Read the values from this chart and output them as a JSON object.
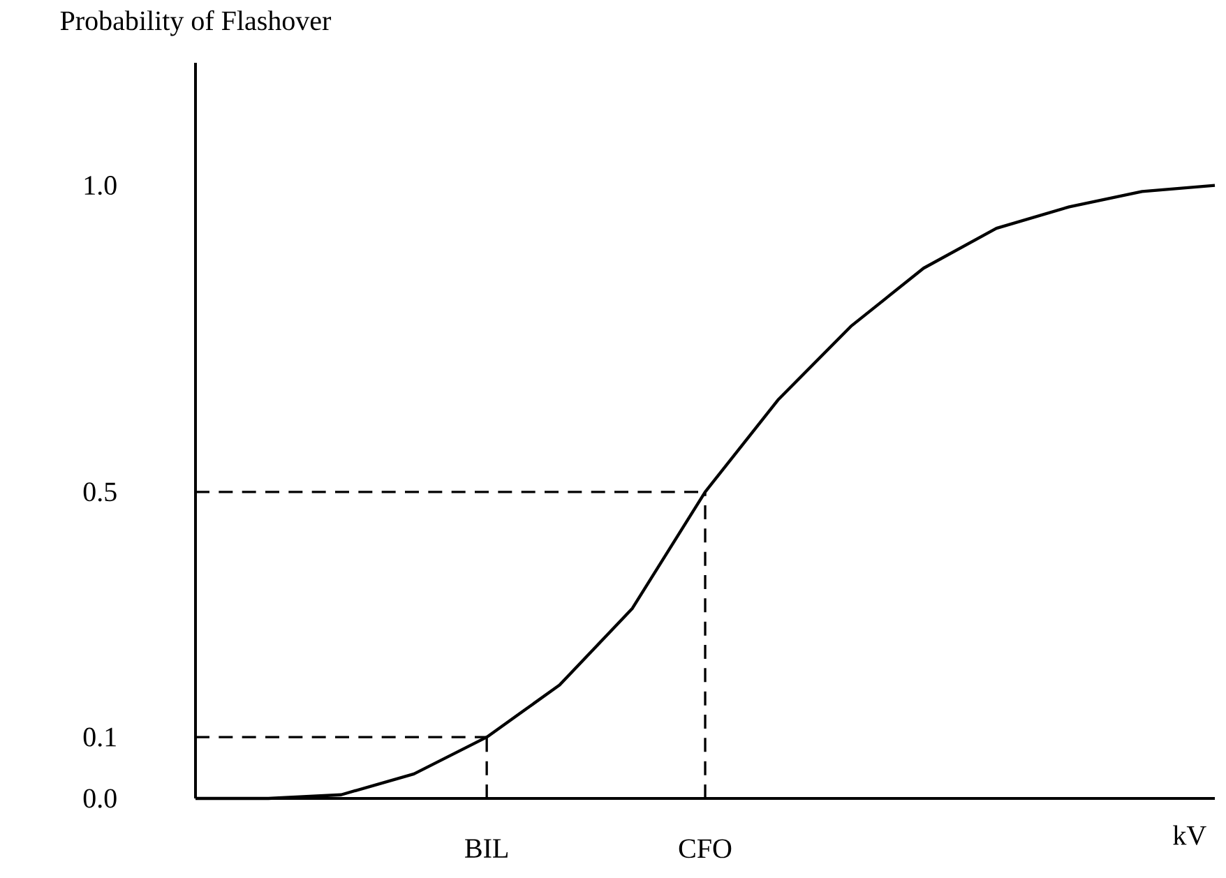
{
  "chart_data": {
    "type": "line",
    "ylabel": "Probability of Flashover",
    "xlabel": "kV",
    "ylim": [
      0,
      1.2
    ],
    "categories": [
      null,
      null,
      null,
      null,
      "BIL",
      null,
      null,
      "CFO",
      null,
      null,
      null,
      null,
      null,
      null,
      null
    ],
    "yticks": [
      {
        "value": 0,
        "label": "0.0"
      },
      {
        "value": 0.1,
        "label": "0.1"
      },
      {
        "value": 0.5,
        "label": "0.5"
      },
      {
        "value": 1.0,
        "label": "1.0"
      }
    ],
    "series": [
      {
        "color": "#000000",
        "line_style": "solid",
        "values": [
          0,
          0,
          0.006,
          0.04,
          0.1,
          0.185,
          0.31,
          0.5,
          0.65,
          0.77,
          0.865,
          0.93,
          0.965,
          0.99,
          1.0
        ]
      }
    ],
    "ref_lines": [
      {
        "axis": "y",
        "value": 0.1,
        "color": "#000000",
        "line_style": "dashed"
      },
      {
        "axis": "y",
        "value": 0.5,
        "color": "#000000",
        "line_style": "dashed"
      },
      {
        "axis": "x",
        "value": "BIL",
        "color": "#000000",
        "line_style": "dashed"
      },
      {
        "axis": "x",
        "value": "CFO",
        "color": "#000000",
        "line_style": "dashed"
      }
    ]
  }
}
